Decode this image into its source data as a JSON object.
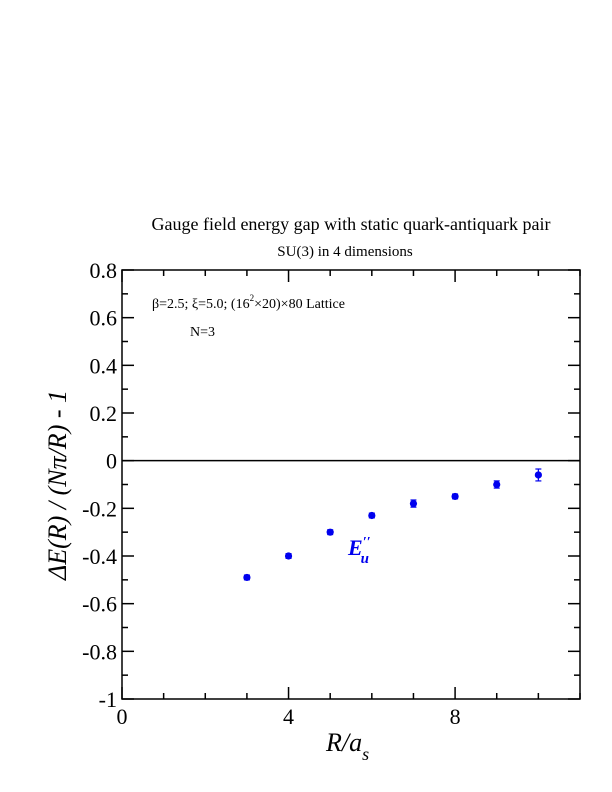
{
  "chart_data": {
    "type": "scatter",
    "title": "Gauge field energy gap with static quark-antiquark pair",
    "subtitle": "SU(3) in 4 dimensions",
    "xlabel_main": "R/a",
    "xlabel_sub": "s",
    "ylabel": "ΔE(R) / (Nπ/R) - 1",
    "xlim": [
      0,
      11
    ],
    "ylim": [
      -1,
      0.8
    ],
    "x_major_ticks": [
      0,
      4,
      8
    ],
    "x_tick_labels": [
      "0",
      "4",
      "8"
    ],
    "y_major_ticks": [
      -1,
      -0.8,
      -0.6,
      -0.4,
      -0.2,
      0,
      0.2,
      0.4,
      0.6,
      0.8
    ],
    "y_tick_labels": [
      "-1",
      "-0.8",
      "-0.6",
      "-0.4",
      "-0.2",
      "0",
      "0.2",
      "0.4",
      "0.6",
      "0.8"
    ],
    "reference_line_y": 0,
    "annotations": {
      "params_line": "β=2.5; ξ=5.0; (16",
      "params_sup": "2",
      "params_rest": "×20)×80 Lattice",
      "n_label": "N=3"
    },
    "series": [
      {
        "name": "E′′u",
        "label_main": "E",
        "label_sup": "′′",
        "label_sub": "u",
        "color": "#0000ee",
        "points": [
          {
            "x": 3,
            "y": -0.49,
            "err": 0.01
          },
          {
            "x": 4,
            "y": -0.4,
            "err": 0.01
          },
          {
            "x": 5,
            "y": -0.3,
            "err": 0.01
          },
          {
            "x": 6,
            "y": -0.23,
            "err": 0.01
          },
          {
            "x": 7,
            "y": -0.18,
            "err": 0.015
          },
          {
            "x": 8,
            "y": -0.15,
            "err": 0.01
          },
          {
            "x": 9,
            "y": -0.1,
            "err": 0.015
          },
          {
            "x": 10,
            "y": -0.06,
            "err": 0.025
          }
        ]
      }
    ],
    "grid": false
  }
}
